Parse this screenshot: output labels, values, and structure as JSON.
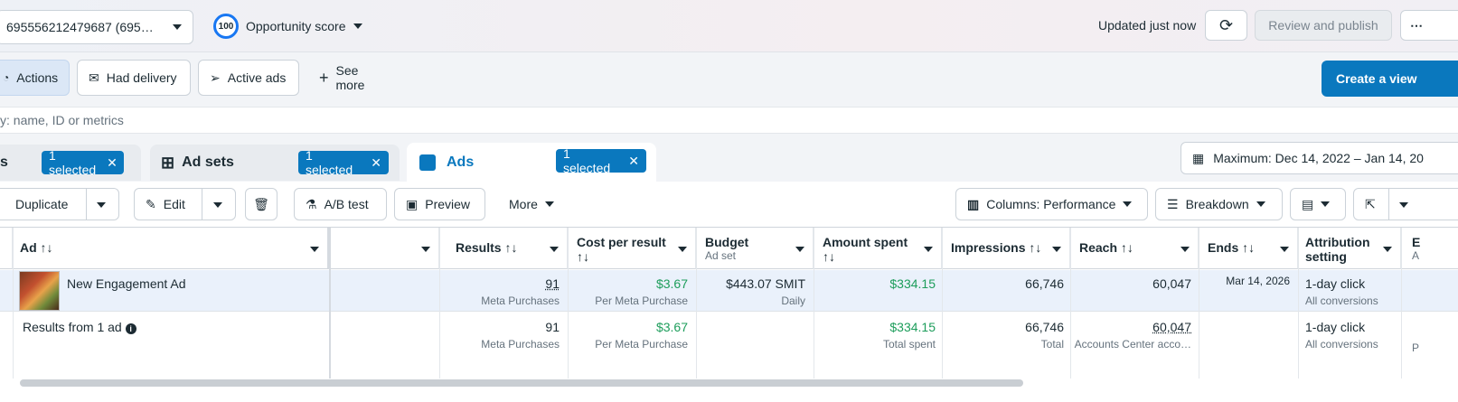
{
  "top": {
    "account_label": "695556212479687 (695…",
    "score_value": "100",
    "score_label": "Opportunity score",
    "updated": "Updated just now",
    "publish": "Review and publish",
    "more": "⋯"
  },
  "filters": {
    "actions": "Actions",
    "had_delivery": "Had delivery",
    "active_ads": "Active ads",
    "see_more": "See more",
    "create_view": "Create a view"
  },
  "search": {
    "placeholder": "y: name, ID or metrics"
  },
  "tabs": {
    "campaigns_fragment": "s",
    "campaigns_sel": "1 selected",
    "adsets_label": "Ad sets",
    "adsets_sel": "1 selected",
    "ads_label": "Ads",
    "ads_sel": "1 selected",
    "date_range": "Maximum: Dec 14, 2022 – Jan 14, 20"
  },
  "toolbar": {
    "duplicate": "Duplicate",
    "edit": "Edit",
    "ab_test": "A/B test",
    "preview": "Preview",
    "more": "More",
    "columns": "Columns: Performance",
    "breakdown": "Breakdown"
  },
  "table": {
    "headers": {
      "ad": "Ad ↑↓",
      "results": "Results ↑↓",
      "cost_per_result": "Cost per result",
      "cost_sort": "↑↓",
      "budget": "Budget",
      "budget_sub": "Ad set",
      "amount_spent": "Amount spent",
      "amount_sort": "↑↓",
      "impressions": "Impressions ↑↓",
      "reach": "Reach ↑↓",
      "ends": "Ends ↑↓",
      "attribution": "Attribution",
      "attribution2": "setting",
      "next_col": "E",
      "next_col_sub": "A"
    },
    "row": {
      "ad_name": "New Engagement Ad",
      "results": "91",
      "results_sub": "Meta Purchases",
      "cost": "$3.67",
      "cost_sub": "Per Meta Purchase",
      "budget": "$443.07 SMIT",
      "budget_sub": "Daily",
      "spent": "$334.15",
      "impressions": "66,746",
      "reach": "60,047",
      "ends": "Mar 14, 2026",
      "attr": "1-day click",
      "attr_sub": "All conversions"
    },
    "summary": {
      "label": "Results from 1 ad",
      "results": "91",
      "results_sub": "Meta Purchases",
      "cost": "$3.67",
      "cost_sub": "Per Meta Purchase",
      "spent": "$334.15",
      "spent_sub": "Total spent",
      "impressions": "66,746",
      "impressions_sub": "Total",
      "reach": "60,047",
      "reach_sub": "Accounts Center acco…",
      "attr": "1-day click",
      "attr_sub": "All conversions",
      "next_col_sub": "P"
    }
  },
  "colors": {
    "accent": "#0a78be",
    "positive": "#1d9d5b"
  }
}
